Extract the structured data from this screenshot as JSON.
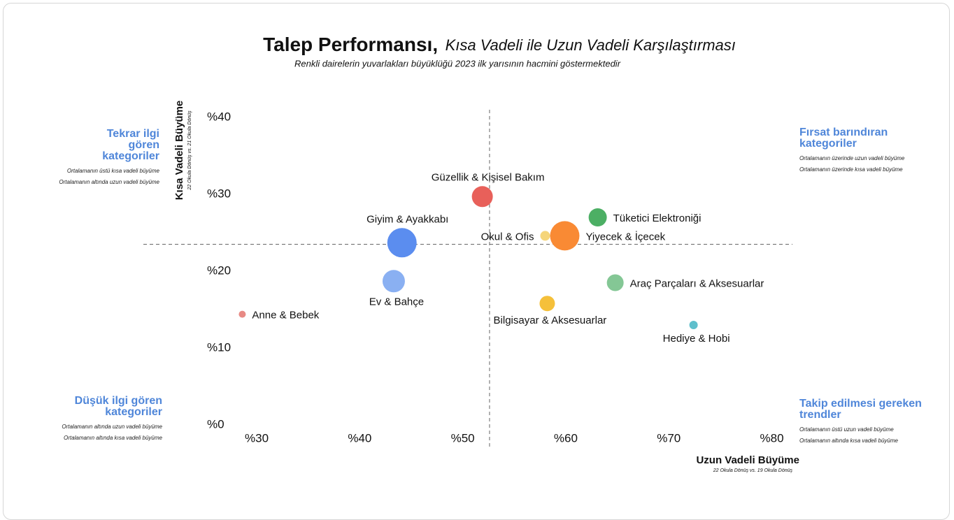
{
  "chart_data": {
    "type": "bubble",
    "title": "Talep Performansı,",
    "title_italic": "Kısa Vadeli ile Uzun Vadeli Karşılaştırması",
    "subtitle": "Renkli dairelerin yuvarlakları büyüklüğü 2023 ilk yarısının hacmini göstermektedir",
    "x_label": "Uzun Vadeli Büyüme",
    "x_sublabel": "22 Okula Dönüş vs. 19 Okula Dönüş",
    "y_label": "Kısa Vadeli Büyüme",
    "y_sublabel": "22 Okula Dönüş vs. 21 Okula Dönüş",
    "xlim": [
      19,
      82
    ],
    "ylim": [
      -3,
      41
    ],
    "xticks": [
      {
        "value": 30,
        "label": "%30"
      },
      {
        "value": 40,
        "label": "%40"
      },
      {
        "value": 50,
        "label": "%50"
      },
      {
        "value": 60,
        "label": "%60"
      },
      {
        "value": 70,
        "label": "%70"
      },
      {
        "value": 80,
        "label": "%80"
      }
    ],
    "yticks": [
      {
        "value": 0,
        "label": "%0"
      },
      {
        "value": 10,
        "label": "%10"
      },
      {
        "value": 20,
        "label": "%20"
      },
      {
        "value": 30,
        "label": "%30"
      },
      {
        "value": 40,
        "label": "%40"
      }
    ],
    "reference_x": 52.6,
    "reference_y": 23.5,
    "categories": [
      "Güzellik & Kişisel Bakım",
      "Giyim & Ayakkabı",
      "Ev & Bahçe",
      "Anne & Bebek",
      "Tüketici Elektroniği",
      "Okul & Ofis",
      "Yiyecek & İçecek",
      "Araç Parçaları & Aksesuarlar",
      "Bilgisayar & Aksesuarlar",
      "Hediye & Hobi"
    ],
    "x": [
      51.9,
      44.1,
      43.3,
      28.6,
      63.1,
      58.0,
      59.9,
      64.8,
      58.2,
      72.4
    ],
    "values": [
      29.7,
      23.7,
      18.7,
      14.4,
      27.0,
      24.6,
      24.6,
      18.5,
      15.8,
      13.0
    ],
    "sizes": [
      225,
      441,
      256,
      25,
      169,
      49,
      441,
      144,
      121,
      36
    ],
    "colors": [
      "#e8605a",
      "#5b8def",
      "#8ab0f2",
      "#e88a85",
      "#4caf64",
      "#f5d57a",
      "#f98a34",
      "#84c795",
      "#f5c03a",
      "#5fbfcc"
    ],
    "quadrants": [
      {
        "title": "Tekrar ilgi gören kategoriler",
        "lines": [
          "Ortalamanın üstü kısa vadeli büyüme",
          "Ortalamanın altında uzun vadeli büyüme"
        ]
      },
      {
        "title": "Fırsat barındıran kategoriler",
        "lines": [
          "Ortalamanın üzerinde uzun vadeli büyüme",
          "Ortalamanın üzerinde kısa vadeli büyüme"
        ]
      },
      {
        "title": "Düşük ilgi gören kategoriler",
        "lines": [
          "Ortalamanın altında uzun vadeli büyüme",
          "Ortalamanın altında kısa vadeli büyüme"
        ]
      },
      {
        "title": "Takip edilmesi gereken trendler",
        "lines": [
          "Ortalamanın üstü uzun vadeli büyüme",
          "Ortalamanın altında kısa vadeli büyüme"
        ]
      }
    ]
  }
}
